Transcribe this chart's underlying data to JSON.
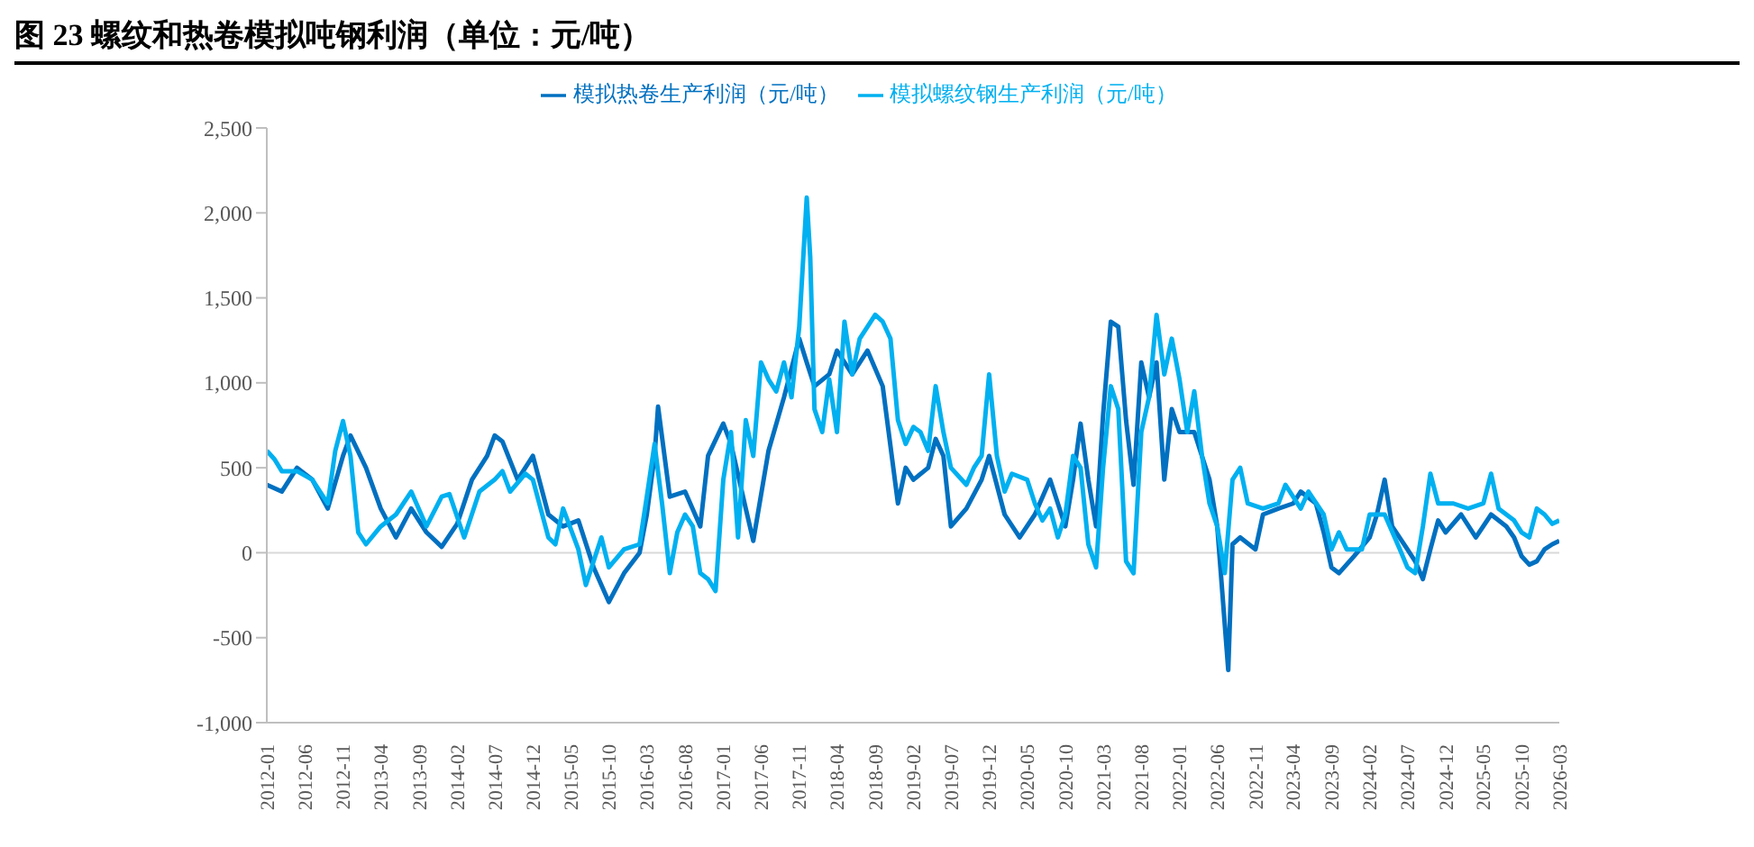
{
  "chart_data": {
    "type": "line",
    "title": "图 23 螺纹和热卷模拟吨钢利润（单位：元/吨）",
    "xlim": [
      "2012-01",
      "2026-03"
    ],
    "xticks": [
      "2012-01",
      "2012-06",
      "2012-11",
      "2013-04",
      "2013-09",
      "2014-02",
      "2014-07",
      "2014-12",
      "2015-05",
      "2015-10",
      "2016-03",
      "2016-08",
      "2017-01",
      "2017-06",
      "2017-11",
      "2018-04",
      "2018-09",
      "2019-02",
      "2019-07",
      "2019-12",
      "2020-05",
      "2020-10",
      "2021-03",
      "2021-08",
      "2022-01",
      "2022-06",
      "2022-11",
      "2023-04",
      "2023-09",
      "2024-02",
      "2024-07",
      "2024-12",
      "2025-05",
      "2025-10",
      "2026-03"
    ],
    "ylim": [
      -1000,
      2500
    ],
    "yticks": [
      {
        "value": -1000,
        "label": "-1,000"
      },
      {
        "value": -500,
        "label": "-500"
      },
      {
        "value": 0,
        "label": "0"
      },
      {
        "value": 500,
        "label": "500"
      },
      {
        "value": 1000,
        "label": "1,000"
      },
      {
        "value": 1500,
        "label": "1,500"
      },
      {
        "value": 2000,
        "label": "2,000"
      },
      {
        "value": 2500,
        "label": "2,500"
      }
    ],
    "legend": "top",
    "marker": "none",
    "line_style": "solid",
    "series": [
      {
        "name": "模拟热卷生产利润（元/吨）",
        "color": "#0070c0",
        "x": [
          "2012-01",
          "2012-03",
          "2012-05",
          "2012-07",
          "2012-09",
          "2012-11",
          "2012-12",
          "2013-02",
          "2013-04",
          "2013-06",
          "2013-08",
          "2013-10",
          "2013-12",
          "2014-02",
          "2014-04",
          "2014-06",
          "2014-07",
          "2014-08",
          "2014-10",
          "2014-12",
          "2015-02",
          "2015-04",
          "2015-06",
          "2015-08",
          "2015-10",
          "2015-12",
          "2016-02",
          "2016-03",
          "2016-04",
          "2016-04-15",
          "2016-06",
          "2016-08",
          "2016-10",
          "2016-11",
          "2017-01",
          "2017-02",
          "2017-04",
          "2017-05",
          "2017-07",
          "2017-09",
          "2017-11",
          "2017-12",
          "2018-01",
          "2018-03",
          "2018-04",
          "2018-06",
          "2018-08",
          "2018-10",
          "2018-12",
          "2019-01",
          "2019-02",
          "2019-04",
          "2019-05",
          "2019-06",
          "2019-07",
          "2019-09",
          "2019-11",
          "2019-12",
          "2020-02",
          "2020-04",
          "2020-06",
          "2020-08",
          "2020-10",
          "2020-11",
          "2020-12",
          "2021-01",
          "2021-02",
          "2021-03",
          "2021-04",
          "2021-05",
          "2021-06",
          "2021-07",
          "2021-08",
          "2021-09",
          "2021-10",
          "2021-11",
          "2021-12",
          "2022-01",
          "2022-03",
          "2022-05",
          "2022-06",
          "2022-07-15",
          "2022-08",
          "2022-09",
          "2022-11",
          "2022-12",
          "2023-02",
          "2023-04",
          "2023-05",
          "2023-07",
          "2023-08",
          "2023-09",
          "2023-10",
          "2023-12",
          "2024-02",
          "2024-03",
          "2024-04",
          "2024-05",
          "2024-07",
          "2024-08",
          "2024-09",
          "2024-10",
          "2024-11",
          "2024-12",
          "2025-02",
          "2025-04",
          "2025-06",
          "2025-08",
          "2025-09",
          "2025-10",
          "2025-11",
          "2025-12",
          "2026-01",
          "2026-02",
          "2026-03"
        ],
        "values": [
          400,
          360,
          500,
          430,
          260,
          570,
          690,
          500,
          260,
          90,
          260,
          120,
          35,
          170,
          430,
          570,
          690,
          655,
          430,
          570,
          225,
          155,
          190,
          -86,
          -290,
          -120,
          0,
          225,
          570,
          860,
          330,
          360,
          155,
          570,
          760,
          640,
          260,
          70,
          600,
          915,
          1260,
          1120,
          980,
          1050,
          1190,
          1050,
          1190,
          980,
          290,
          500,
          430,
          500,
          670,
          570,
          155,
          260,
          430,
          570,
          225,
          90,
          225,
          430,
          155,
          430,
          760,
          430,
          155,
          810,
          1360,
          1330,
          780,
          400,
          1120,
          915,
          1120,
          430,
          845,
          710,
          710,
          430,
          155,
          -690,
          50,
          90,
          20,
          225,
          260,
          290,
          360,
          290,
          120,
          -86,
          -120,
          -20,
          90,
          225,
          430,
          155,
          20,
          -50,
          -155,
          20,
          190,
          120,
          225,
          90,
          225,
          155,
          90,
          -20,
          -70,
          -50,
          20,
          50,
          70
        ]
      },
      {
        "name": "模拟螺纹钢生产利润（元/吨）",
        "color": "#00b0f0",
        "x": [
          "2012-01",
          "2012-02",
          "2012-03",
          "2012-05",
          "2012-07",
          "2012-09",
          "2012-10",
          "2012-11",
          "2012-12",
          "2013-01",
          "2013-02",
          "2013-04",
          "2013-06",
          "2013-08",
          "2013-10",
          "2013-12",
          "2014-01",
          "2014-03",
          "2014-05",
          "2014-07",
          "2014-08",
          "2014-09",
          "2014-11",
          "2014-12",
          "2015-02",
          "2015-03",
          "2015-04",
          "2015-06",
          "2015-07",
          "2015-09",
          "2015-10",
          "2015-12",
          "2016-02",
          "2016-03",
          "2016-04",
          "2016-05",
          "2016-06",
          "2016-07",
          "2016-08",
          "2016-09",
          "2016-10",
          "2016-11",
          "2016-12",
          "2017-01",
          "2017-02",
          "2017-03",
          "2017-04",
          "2017-05",
          "2017-06",
          "2017-07",
          "2017-08",
          "2017-09",
          "2017-10",
          "2017-11",
          "2017-12",
          "2017-12-15",
          "2018-01",
          "2018-02",
          "2018-03",
          "2018-04",
          "2018-05",
          "2018-06",
          "2018-07",
          "2018-08",
          "2018-09",
          "2018-10",
          "2018-11",
          "2018-12",
          "2019-01",
          "2019-02",
          "2019-03",
          "2019-04",
          "2019-05",
          "2019-06",
          "2019-07",
          "2019-09",
          "2019-10",
          "2019-11",
          "2019-12",
          "2020-01",
          "2020-02",
          "2020-03",
          "2020-05",
          "2020-06",
          "2020-07",
          "2020-08",
          "2020-09",
          "2020-10",
          "2020-11",
          "2020-12",
          "2021-01",
          "2021-02",
          "2021-03",
          "2021-04",
          "2021-05",
          "2021-06",
          "2021-07",
          "2021-08",
          "2021-09",
          "2021-10",
          "2021-11",
          "2021-12",
          "2022-01",
          "2022-02",
          "2022-03",
          "2022-04",
          "2022-05",
          "2022-06",
          "2022-07",
          "2022-08",
          "2022-09",
          "2022-10",
          "2022-12",
          "2023-02",
          "2023-03",
          "2023-05",
          "2023-06",
          "2023-08",
          "2023-09",
          "2023-10",
          "2023-11",
          "2024-01",
          "2024-02",
          "2024-04",
          "2024-06",
          "2024-07",
          "2024-08",
          "2024-09",
          "2024-10",
          "2024-11",
          "2025-01",
          "2025-03",
          "2025-05",
          "2025-06",
          "2025-07",
          "2025-09",
          "2025-10",
          "2025-11",
          "2025-12",
          "2026-01",
          "2026-02",
          "2026-03"
        ],
        "values": [
          600,
          550,
          480,
          480,
          430,
          290,
          600,
          775,
          570,
          120,
          50,
          155,
          225,
          360,
          155,
          330,
          345,
          90,
          360,
          430,
          480,
          360,
          465,
          430,
          90,
          50,
          260,
          20,
          -190,
          90,
          -86,
          20,
          50,
          330,
          640,
          290,
          -120,
          120,
          225,
          155,
          -120,
          -155,
          -225,
          430,
          710,
          90,
          780,
          570,
          1120,
          1020,
          950,
          1120,
          915,
          1330,
          2090,
          1740,
          845,
          710,
          1020,
          710,
          1360,
          1050,
          1260,
          1330,
          1400,
          1360,
          1260,
          780,
          640,
          740,
          710,
          600,
          980,
          710,
          500,
          400,
          500,
          570,
          1050,
          570,
          360,
          465,
          430,
          290,
          190,
          260,
          90,
          225,
          570,
          500,
          50,
          -86,
          500,
          980,
          845,
          -50,
          -120,
          710,
          915,
          1400,
          1050,
          1260,
          1020,
          710,
          950,
          570,
          290,
          155,
          -120,
          430,
          500,
          290,
          260,
          290,
          400,
          260,
          360,
          225,
          20,
          120,
          20,
          20,
          225,
          225,
          20,
          -86,
          -120,
          155,
          465,
          290,
          290,
          260,
          290,
          465,
          260,
          190,
          120,
          90,
          260,
          225,
          170,
          190
        ]
      }
    ]
  }
}
